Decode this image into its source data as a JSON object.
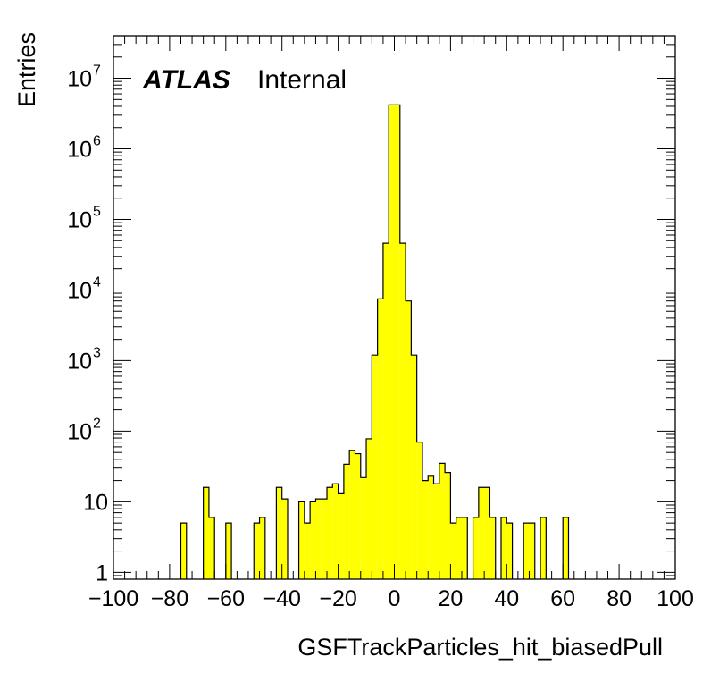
{
  "chart_data": {
    "type": "bar",
    "label_main": "ATLAS",
    "label_sub": "Internal",
    "xlabel": "GSFTrackParticles_hit_biasedPull",
    "ylabel": "Entries",
    "xlim": [
      -100,
      100
    ],
    "ylim": [
      0.8,
      40000000
    ],
    "y_scale": "log",
    "bar_color": "#ffff00",
    "edge_color": "#000000",
    "x_ticks": [
      -100,
      -80,
      -60,
      -40,
      -20,
      0,
      20,
      40,
      60,
      80,
      100
    ],
    "x_tick_labels": [
      "−100",
      "−80",
      "−60",
      "−40",
      "−20",
      "0",
      "20",
      "40",
      "60",
      "80",
      "100"
    ],
    "y_ticks": [
      {
        "value": 1,
        "base": "1",
        "exp": ""
      },
      {
        "value": 10,
        "base": "10",
        "exp": ""
      },
      {
        "value": 100,
        "base": "10",
        "exp": "2"
      },
      {
        "value": 1000,
        "base": "10",
        "exp": "3"
      },
      {
        "value": 10000,
        "base": "10",
        "exp": "4"
      },
      {
        "value": 100000,
        "base": "10",
        "exp": "5"
      },
      {
        "value": 1000000,
        "base": "10",
        "exp": "6"
      },
      {
        "value": 10000000,
        "base": "10",
        "exp": "7"
      }
    ],
    "bin_width": 2,
    "bins": [
      {
        "x": -76,
        "y": 5
      },
      {
        "x": -68,
        "y": 16
      },
      {
        "x": -66,
        "y": 6
      },
      {
        "x": -60,
        "y": 5
      },
      {
        "x": -50,
        "y": 5
      },
      {
        "x": -48,
        "y": 6
      },
      {
        "x": -42,
        "y": 16
      },
      {
        "x": -40,
        "y": 11
      },
      {
        "x": -34,
        "y": 10
      },
      {
        "x": -32,
        "y": 5
      },
      {
        "x": -30,
        "y": 10
      },
      {
        "x": -28,
        "y": 11
      },
      {
        "x": -26,
        "y": 11
      },
      {
        "x": -24,
        "y": 16
      },
      {
        "x": -22,
        "y": 18
      },
      {
        "x": -20,
        "y": 13
      },
      {
        "x": -18,
        "y": 34
      },
      {
        "x": -16,
        "y": 53
      },
      {
        "x": -14,
        "y": 48
      },
      {
        "x": -12,
        "y": 22
      },
      {
        "x": -10,
        "y": 78
      },
      {
        "x": -8,
        "y": 1200
      },
      {
        "x": -6,
        "y": 7500
      },
      {
        "x": -4,
        "y": 46000
      },
      {
        "x": -2,
        "y": 4200000
      },
      {
        "x": 0,
        "y": 4200000
      },
      {
        "x": 2,
        "y": 46000
      },
      {
        "x": 4,
        "y": 7000
      },
      {
        "x": 6,
        "y": 1200
      },
      {
        "x": 8,
        "y": 70
      },
      {
        "x": 10,
        "y": 20
      },
      {
        "x": 12,
        "y": 23
      },
      {
        "x": 14,
        "y": 18
      },
      {
        "x": 16,
        "y": 35
      },
      {
        "x": 18,
        "y": 26
      },
      {
        "x": 20,
        "y": 5
      },
      {
        "x": 22,
        "y": 6
      },
      {
        "x": 24,
        "y": 6
      },
      {
        "x": 28,
        "y": 6
      },
      {
        "x": 30,
        "y": 16
      },
      {
        "x": 32,
        "y": 16
      },
      {
        "x": 34,
        "y": 6
      },
      {
        "x": 38,
        "y": 6
      },
      {
        "x": 40,
        "y": 5
      },
      {
        "x": 46,
        "y": 5
      },
      {
        "x": 48,
        "y": 5
      },
      {
        "x": 52,
        "y": 6
      },
      {
        "x": 60,
        "y": 6
      }
    ]
  }
}
